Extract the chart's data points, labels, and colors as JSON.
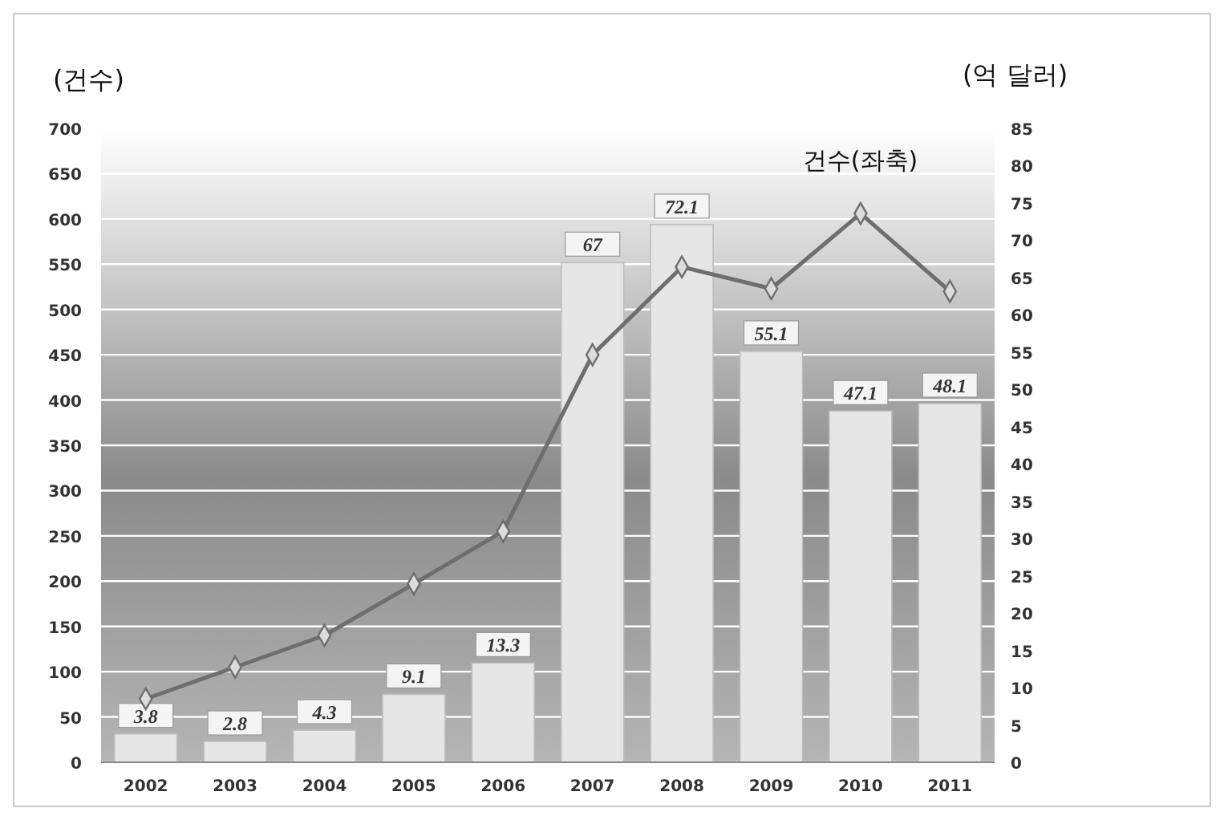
{
  "chart_data": {
    "type": "bar",
    "ylabel": "(건수)",
    "y2label": "(억 달러)",
    "categories": [
      "2002",
      "2003",
      "2004",
      "2005",
      "2006",
      "2007",
      "2008",
      "2009",
      "2010",
      "2011"
    ],
    "series": [
      {
        "axis": "y2",
        "color": "#e6e6e6",
        "values": [
          3.8,
          2.8,
          4.3,
          9.1,
          13.3,
          67,
          72.1,
          55.1,
          47.1,
          48.1
        ],
        "value_labels": [
          "3.8",
          "2.8",
          "4.3",
          "9.1",
          "13.3",
          "67",
          "72.1",
          "55.1",
          "47.1",
          "48.1"
        ]
      },
      {
        "type": "line",
        "name": "건수(좌축)",
        "color": "#6e6e6e",
        "marker": "diamond",
        "values": [
          70,
          105,
          140,
          197,
          255,
          450,
          547,
          523,
          606,
          520
        ]
      }
    ],
    "ylim": [
      0,
      700
    ],
    "yticks": [
      0,
      50,
      100,
      150,
      200,
      250,
      300,
      350,
      400,
      450,
      500,
      550,
      600,
      650,
      700
    ],
    "y2lim": [
      0,
      85
    ],
    "y2ticks": [
      0,
      5,
      10,
      15,
      20,
      25,
      30,
      35,
      40,
      45,
      50,
      55,
      60,
      65,
      70,
      75,
      80,
      85
    ],
    "grid": "y"
  }
}
